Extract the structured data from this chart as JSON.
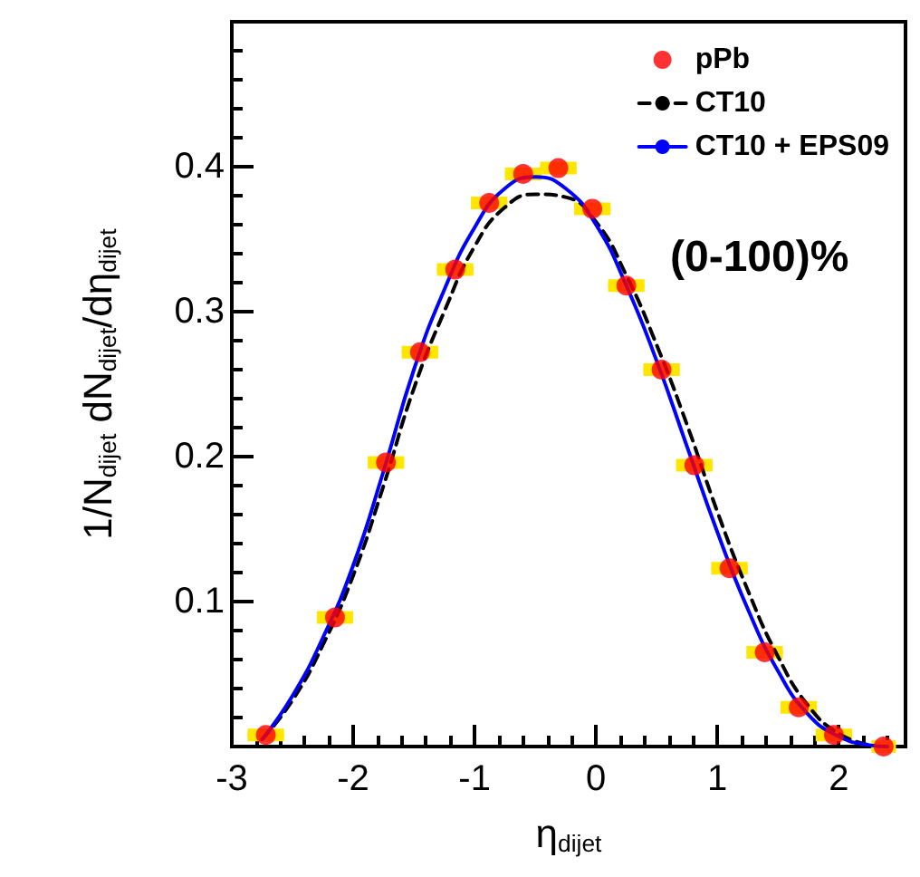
{
  "chart_data": {
    "type": "scatter",
    "xlabel": "η$_{dijet}$",
    "ylabel": "1/N$_{dijet}$ dN$_{dijet}$/dη$_{dijet}$",
    "annotations": [
      "(0-100)%"
    ],
    "xlim": [
      -3,
      2.55
    ],
    "xticks": [
      -3,
      -2,
      -1,
      0,
      1,
      2
    ],
    "ylim": [
      0,
      0.5
    ],
    "yticks": [
      0.1,
      0.2,
      0.3,
      0.4
    ],
    "grid": false,
    "legend": "top right",
    "series": [
      {
        "name": "pPb",
        "color": "#ff0000",
        "marker": "circle",
        "x": [
          -2.72,
          -2.15,
          -1.73,
          -1.45,
          -1.16,
          -0.88,
          -0.6,
          -0.31,
          -0.03,
          0.25,
          0.54,
          0.81,
          1.1,
          1.39,
          1.67,
          1.96,
          2.37
        ],
        "values": [
          0.008,
          0.089,
          0.196,
          0.272,
          0.329,
          0.375,
          0.395,
          0.399,
          0.371,
          0.318,
          0.26,
          0.194,
          0.123,
          0.065,
          0.027,
          0.008,
          0.0
        ],
        "xerrors": [
          0.15,
          0.15,
          0.15,
          0.15,
          0.15,
          0.15,
          0.15,
          0.15,
          0.15,
          0.15,
          0.15,
          0.15,
          0.15,
          0.15,
          0.15,
          0.15,
          0.1
        ]
      },
      {
        "name": "CT10",
        "type": "line",
        "color": "#000000",
        "line_style": "dashed",
        "marker": "none",
        "x": [
          -2.75,
          -2.5,
          -2.25,
          -2,
          -1.75,
          -1.5,
          -1.25,
          -1,
          -0.75,
          -0.5,
          -0.25,
          0,
          0.25,
          0.5,
          0.75,
          1,
          1.25,
          1.5,
          1.75,
          2,
          2.25
        ],
        "values": [
          0.005,
          0.032,
          0.07,
          0.118,
          0.18,
          0.247,
          0.3,
          0.345,
          0.372,
          0.381,
          0.379,
          0.362,
          0.325,
          0.277,
          0.222,
          0.162,
          0.108,
          0.062,
          0.028,
          0.009,
          0.001
        ]
      },
      {
        "name": "CT10 + EPS09",
        "type": "line",
        "color": "#0000ff",
        "line_style": "solid",
        "marker": "none",
        "x": [
          -2.75,
          -2.5,
          -2.25,
          -2,
          -1.75,
          -1.5,
          -1.25,
          -1,
          -0.75,
          -0.5,
          -0.25,
          0,
          0.25,
          0.5,
          0.75,
          1,
          1.25,
          1.5,
          1.75,
          2,
          2.25,
          2.4
        ],
        "values": [
          0.005,
          0.035,
          0.075,
          0.125,
          0.19,
          0.26,
          0.315,
          0.358,
          0.385,
          0.393,
          0.385,
          0.36,
          0.318,
          0.266,
          0.207,
          0.148,
          0.095,
          0.052,
          0.022,
          0.007,
          0.001,
          0.0
        ]
      }
    ]
  }
}
